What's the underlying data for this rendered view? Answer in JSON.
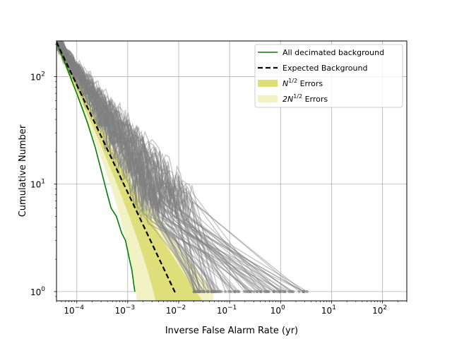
{
  "chart_data": {
    "type": "line",
    "title": "",
    "xlabel": "Inverse False Alarm Rate (yr)",
    "ylabel": "Cumulative Number",
    "x_scale": "log",
    "y_scale": "log",
    "xlim": [
      4e-05,
      300
    ],
    "ylim": [
      0.82,
      215
    ],
    "grid": true,
    "legend_position": "upper right",
    "x_ticks": [
      {
        "value": 0.0001,
        "base": "10",
        "exp": "−4"
      },
      {
        "value": 0.001,
        "base": "10",
        "exp": "−3"
      },
      {
        "value": 0.01,
        "base": "10",
        "exp": "−2"
      },
      {
        "value": 0.1,
        "base": "10",
        "exp": "−1"
      },
      {
        "value": 1,
        "base": "10",
        "exp": "0"
      },
      {
        "value": 10,
        "base": "10",
        "exp": "1"
      },
      {
        "value": 100,
        "base": "10",
        "exp": "2"
      }
    ],
    "y_ticks": [
      {
        "value": 1,
        "base": "10",
        "exp": "0"
      },
      {
        "value": 10,
        "base": "10",
        "exp": "1"
      },
      {
        "value": 100,
        "base": "10",
        "exp": "2"
      }
    ],
    "colors": {
      "background_trials": "#808080",
      "all_decimated": "#008000",
      "expected": "#000000",
      "n_half_errors": "#dede7a",
      "two_n_half_errors": "#f2f2c4"
    },
    "series": [
      {
        "name": "All decimated background",
        "style": "solid",
        "color": "#008000",
        "points": [
          [
            4.2e-05,
            200
          ],
          [
            6e-05,
            130
          ],
          [
            0.0001,
            70
          ],
          [
            0.00016,
            38
          ],
          [
            0.00023,
            22
          ],
          [
            0.00032,
            12
          ],
          [
            0.0004,
            8
          ],
          [
            0.00047,
            6
          ],
          [
            0.0006,
            5
          ],
          [
            0.00076,
            3.5
          ],
          [
            0.0009,
            3.0
          ],
          [
            0.00108,
            2.0
          ],
          [
            0.0012,
            1.6
          ],
          [
            0.00138,
            1.0
          ]
        ]
      },
      {
        "name": "Expected Background",
        "style": "dashed",
        "color": "#000000",
        "points": [
          [
            4e-05,
            210
          ],
          [
            0.0087,
            0.96
          ]
        ]
      }
    ],
    "legend": [
      {
        "label": "All decimated background",
        "kind": "line",
        "color": "#008000"
      },
      {
        "label": "Expected Background",
        "kind": "dashed",
        "color": "#000000"
      },
      {
        "label_base": "N",
        "label_sup": "1/2",
        "label_suffix": " Errors",
        "kind": "patch",
        "color": "#dede7a"
      },
      {
        "label_base": "2N",
        "label_sup": "1/2",
        "label_suffix": " Errors",
        "kind": "patch",
        "color": "#f2f2c4"
      }
    ],
    "background_trials": {
      "count": 80,
      "description_of_spread_min_ifar": [
        0.002,
        0.02
      ],
      "description_of_spread_max_ifar": [
        0.02,
        4.0
      ],
      "color": "#808080"
    }
  }
}
